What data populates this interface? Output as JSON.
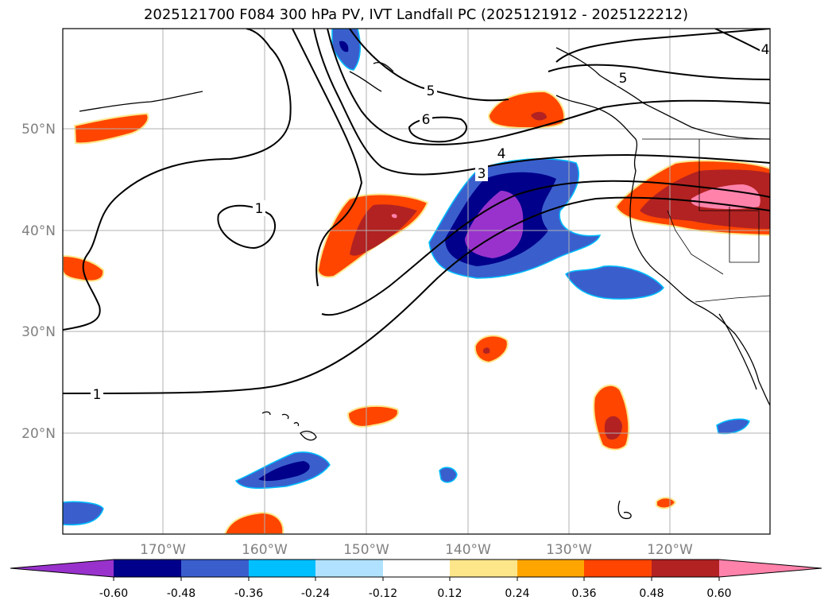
{
  "title": "2025121700 F084 300 hPa PV, IVT Landfall PC (2025121912 - 2025122212)",
  "map": {
    "lat_labels": [
      "50°N",
      "40°N",
      "30°N",
      "20°N"
    ],
    "lon_labels": [
      "170°W",
      "160°W",
      "150°W",
      "140°W",
      "130°W",
      "120°W"
    ],
    "contour_labels": [
      "1",
      "1",
      "3",
      "4",
      "5",
      "5",
      "6",
      "4"
    ]
  },
  "colorbar": {
    "ticks": [
      "-0.60",
      "-0.48",
      "-0.36",
      "-0.24",
      "-0.12",
      "0.12",
      "0.24",
      "0.36",
      "0.48",
      "0.60"
    ],
    "colors": [
      "#9932cc",
      "#00008b",
      "#3a5fcd",
      "#00bfff",
      "#b0e2ff",
      "#ffffff",
      "#fde68a",
      "#ffa500",
      "#ff4500",
      "#b22222",
      "#ff82ab"
    ]
  }
}
